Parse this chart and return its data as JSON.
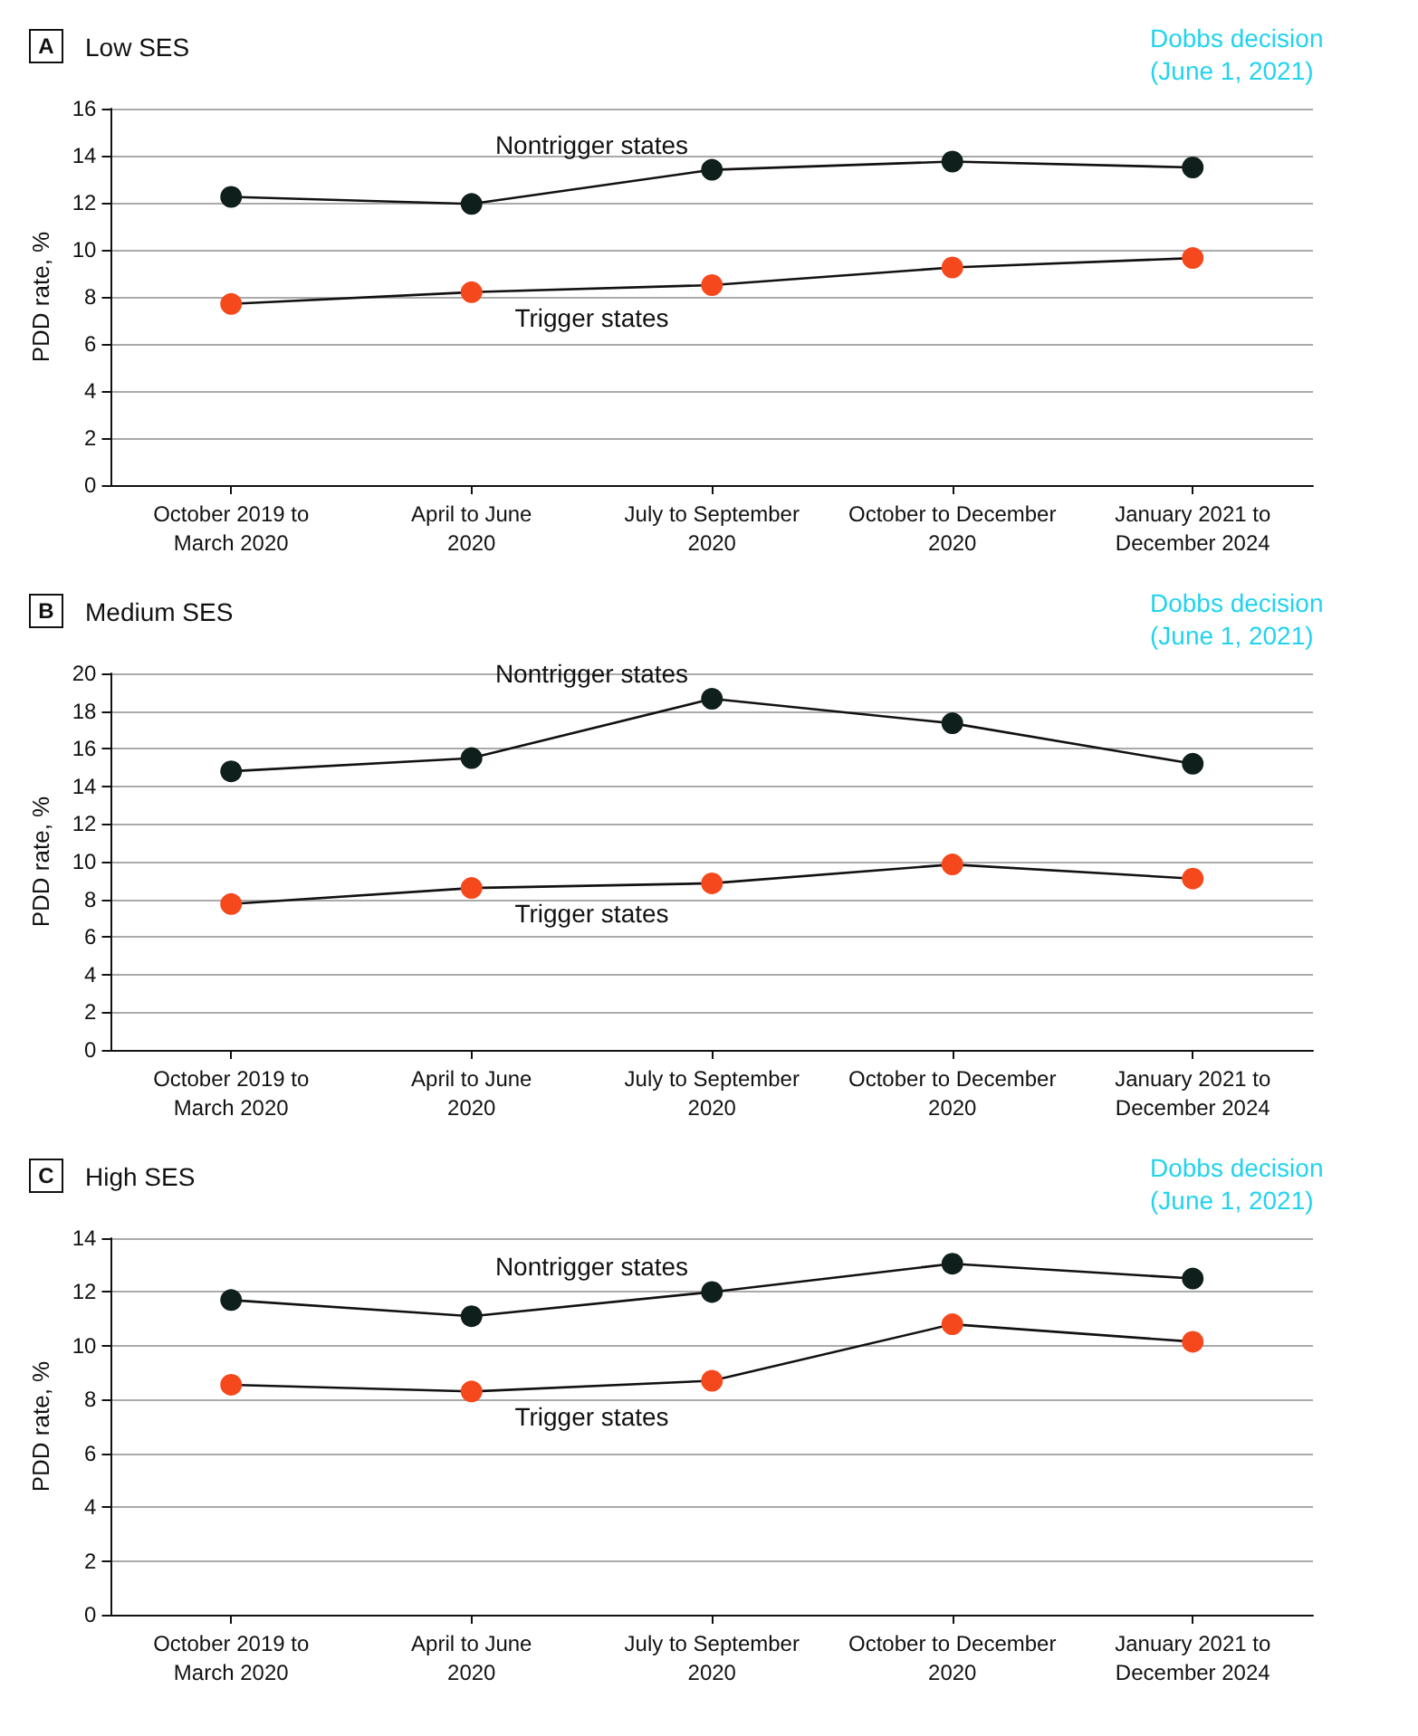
{
  "chart_data": [
    {
      "type": "line",
      "title": "Low SES",
      "ylabel": "PDD rate, %",
      "categories": [
        "October 2019 to\nMarch 2020",
        "April to June\n2020",
        "July to September\n2020",
        "October to December\n2020",
        "January 2021 to\nDecember 2024"
      ],
      "series": [
        {
          "name": "Nontrigger states",
          "color": "#0f1f1c",
          "values": [
            12.25,
            11.95,
            13.4,
            13.75,
            13.5
          ]
        },
        {
          "name": "Trigger states",
          "color": "#f5481c",
          "values": [
            7.7,
            8.2,
            8.5,
            9.25,
            9.65
          ]
        }
      ],
      "ylim": [
        0,
        16
      ],
      "yticks": [
        0,
        2,
        4,
        6,
        8,
        10,
        12,
        14,
        16
      ],
      "grid": "y",
      "marker": "circle",
      "legend": false,
      "annotations": [
        "A",
        "Dobbs decision (June 1, 2021)"
      ]
    },
    {
      "type": "line",
      "title": "Medium SES",
      "ylabel": "PDD rate, %",
      "categories": [
        "October 2019 to\nMarch 2020",
        "April to June\n2020",
        "July to September\n2020",
        "October to December\n2020",
        "January 2021 to\nDecember 2024"
      ],
      "series": [
        {
          "name": "Nontrigger states",
          "color": "#0f1f1c",
          "values": [
            14.8,
            15.5,
            18.65,
            17.35,
            15.2
          ]
        },
        {
          "name": "Trigger states",
          "color": "#f5481c",
          "values": [
            7.75,
            8.6,
            8.85,
            9.85,
            9.1
          ]
        }
      ],
      "ylim": [
        0,
        20
      ],
      "yticks": [
        0,
        2,
        4,
        6,
        8,
        10,
        12,
        14,
        16,
        18,
        20
      ],
      "grid": "y",
      "marker": "circle",
      "legend": false,
      "annotations": [
        "B",
        "Dobbs decision (June 1, 2021)"
      ]
    },
    {
      "type": "line",
      "title": "High SES",
      "ylabel": "PDD rate, %",
      "categories": [
        "October 2019 to\nMarch 2020",
        "April to June\n2020",
        "July to September\n2020",
        "October to December\n2020",
        "January 2021 to\nDecember 2024"
      ],
      "series": [
        {
          "name": "Nontrigger states",
          "color": "#0f1f1c",
          "values": [
            11.7,
            11.1,
            12.0,
            13.05,
            12.5
          ]
        },
        {
          "name": "Trigger states",
          "color": "#f5481c",
          "values": [
            8.55,
            8.3,
            8.7,
            10.8,
            10.15
          ]
        }
      ],
      "ylim": [
        0,
        14
      ],
      "yticks": [
        0,
        2,
        4,
        6,
        8,
        10,
        12,
        14
      ],
      "grid": "y",
      "marker": "circle",
      "legend": false,
      "annotations": [
        "C",
        "Dobbs decision (June 1, 2021)"
      ]
    }
  ]
}
